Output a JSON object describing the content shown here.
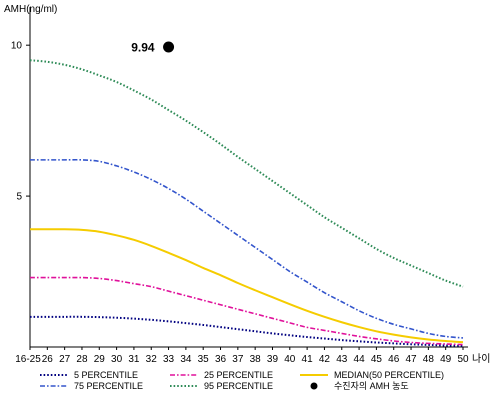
{
  "chart_data": {
    "type": "line",
    "ylabel": "AMH(ng/ml)",
    "xlabel": "나이",
    "x": [
      "16-25",
      "26",
      "27",
      "28",
      "29",
      "30",
      "31",
      "32",
      "33",
      "34",
      "35",
      "36",
      "37",
      "38",
      "39",
      "40",
      "41",
      "42",
      "43",
      "44",
      "45",
      "46",
      "47",
      "48",
      "49",
      "50"
    ],
    "yticks": [
      10,
      5
    ],
    "ylim": [
      0,
      11
    ],
    "grid": false,
    "legend_placement": "bottom",
    "series": [
      {
        "name": "5 PERCENTILE",
        "color": "#000080",
        "dash": "dotted",
        "values": [
          1.0,
          1.0,
          1.0,
          1.0,
          0.99,
          0.97,
          0.94,
          0.9,
          0.85,
          0.79,
          0.73,
          0.66,
          0.59,
          0.52,
          0.45,
          0.39,
          0.33,
          0.28,
          0.23,
          0.19,
          0.15,
          0.12,
          0.09,
          0.07,
          0.05,
          0.04
        ]
      },
      {
        "name": "75 PERCENTILE",
        "color": "#3355cc",
        "dash": "dashdot",
        "values": [
          6.2,
          6.2,
          6.2,
          6.2,
          6.15,
          6.0,
          5.8,
          5.55,
          5.25,
          4.9,
          4.5,
          4.1,
          3.7,
          3.3,
          2.9,
          2.5,
          2.15,
          1.8,
          1.5,
          1.2,
          0.95,
          0.75,
          0.6,
          0.45,
          0.35,
          0.3
        ]
      },
      {
        "name": "25 PERCENTILE",
        "color": "#e0119b",
        "dash": "dashdot",
        "values": [
          2.3,
          2.3,
          2.3,
          2.3,
          2.27,
          2.2,
          2.1,
          2.0,
          1.85,
          1.7,
          1.55,
          1.4,
          1.25,
          1.1,
          0.95,
          0.8,
          0.65,
          0.55,
          0.45,
          0.35,
          0.27,
          0.2,
          0.15,
          0.12,
          0.1,
          0.08
        ]
      },
      {
        "name": "95 PERCENTILE",
        "color": "#2e8b57",
        "dash": "dotted",
        "values": [
          9.5,
          9.45,
          9.35,
          9.2,
          9.0,
          8.78,
          8.5,
          8.2,
          7.85,
          7.5,
          7.12,
          6.72,
          6.3,
          5.9,
          5.5,
          5.1,
          4.7,
          4.3,
          3.95,
          3.6,
          3.25,
          2.95,
          2.7,
          2.45,
          2.2,
          2.0
        ]
      },
      {
        "name": "MEDIAN(50 PERCENTILE)",
        "color": "#f5cc00",
        "dash": "solid",
        "values": [
          3.9,
          3.9,
          3.9,
          3.88,
          3.82,
          3.7,
          3.55,
          3.35,
          3.12,
          2.88,
          2.62,
          2.38,
          2.12,
          1.88,
          1.65,
          1.42,
          1.2,
          1.0,
          0.82,
          0.66,
          0.52,
          0.41,
          0.32,
          0.25,
          0.2,
          0.16
        ]
      }
    ],
    "points": [
      {
        "name": "수진자의 AMH 농도",
        "x": "33",
        "y": 9.94,
        "label": "9.94",
        "color": "#000000"
      }
    ]
  }
}
